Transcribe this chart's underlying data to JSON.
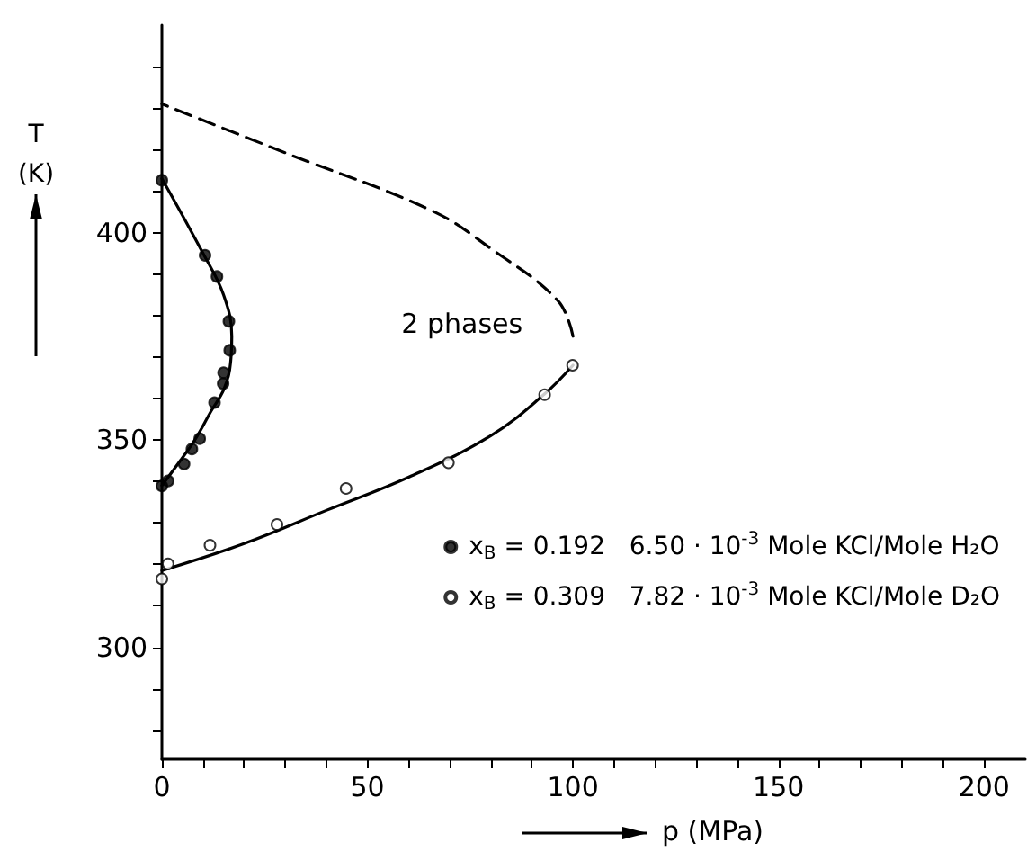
{
  "chart_data": {
    "type": "scatter",
    "xlabel": "p (MPa)",
    "ylabel": "T (K)",
    "xlim": [
      0,
      210
    ],
    "ylim": [
      273,
      450
    ],
    "xticks": [
      0,
      {
        "value": 10,
        "label": null
      },
      {
        "value": 20,
        "label": null
      },
      {
        "value": 30,
        "label": null
      },
      {
        "value": 40,
        "label": null
      },
      50,
      {
        "value": 60,
        "label": null
      },
      {
        "value": 70,
        "label": null
      },
      {
        "value": 80,
        "label": null
      },
      {
        "value": 90,
        "label": null
      },
      100,
      {
        "value": 110,
        "label": null
      },
      {
        "value": 120,
        "label": null
      },
      {
        "value": 130,
        "label": null
      },
      {
        "value": 140,
        "label": null
      },
      150,
      {
        "value": 160,
        "label": null
      },
      {
        "value": 170,
        "label": null
      },
      {
        "value": 180,
        "label": null
      },
      {
        "value": 190,
        "label": null
      },
      200
    ],
    "yticks": [
      {
        "value": 280,
        "label": null
      },
      {
        "value": 290,
        "label": null
      },
      300,
      {
        "value": 310,
        "label": null
      },
      {
        "value": 320,
        "label": null
      },
      {
        "value": 330,
        "label": null
      },
      {
        "value": 340,
        "label": null
      },
      350,
      {
        "value": 360,
        "label": null
      },
      {
        "value": 370,
        "label": null
      },
      {
        "value": 380,
        "label": null
      },
      {
        "value": 390,
        "label": null
      },
      400,
      {
        "value": 410,
        "label": null
      },
      {
        "value": 420,
        "label": null
      },
      {
        "value": 430,
        "label": null
      },
      {
        "value": 440,
        "label": null
      }
    ],
    "grid": false,
    "legend": "right",
    "marker": "circle",
    "annotations": [
      "2 phases"
    ],
    "series": [
      {
        "name": "x$_{B}$ = 0.192   6.50 · 10$^{-3}$ Mole KCl/Mole H₂O",
        "color": "#000000",
        "x": [
          0,
          10.5,
          13.4,
          16.3,
          16.5,
          15.0,
          14.9,
          12.8,
          9.2,
          7.3,
          5.4,
          1.5,
          0
        ],
        "values": [
          412.6,
          394.5,
          389.4,
          378.6,
          371.6,
          366.2,
          363.6,
          359.0,
          350.3,
          347.8,
          344.2,
          340.1,
          338.9
        ]
      },
      {
        "name": "x$_{B}$ = 0.309   7.82 · 10$^{-3}$ Mole KCl/Mole D₂O",
        "color": "#ffffff",
        "x": [
          0,
          1.5,
          11.7,
          28,
          44.8,
          69.7,
          93.1,
          99.9
        ],
        "values": [
          316.5,
          320.1,
          324.6,
          329.6,
          338.3,
          344.5,
          360.9,
          368.0
        ]
      },
      {
        "type": "line",
        "color": "#000000",
        "line_style": "solid",
        "marker": "none",
        "x": [
          0,
          10,
          15,
          17,
          16.5,
          15,
          12,
          8,
          3,
          0
        ],
        "values": [
          413,
          395,
          385,
          375,
          367,
          362,
          357,
          350,
          343,
          339
        ]
      },
      {
        "type": "line",
        "color": "#000000",
        "line_style": "solid",
        "marker": "none",
        "x": [
          0,
          20,
          40,
          60,
          80,
          93,
          100
        ],
        "values": [
          318.5,
          325,
          333,
          341,
          351,
          361,
          368
        ]
      },
      {
        "type": "line",
        "color": "#000000",
        "line_style": "dashed",
        "marker": "none",
        "x": [
          100,
          96.3,
          80.2,
          65.6,
          30.6,
          0
        ],
        "values": [
          375,
          383.6,
          396,
          405.3,
          419,
          431
        ]
      }
    ]
  }
}
